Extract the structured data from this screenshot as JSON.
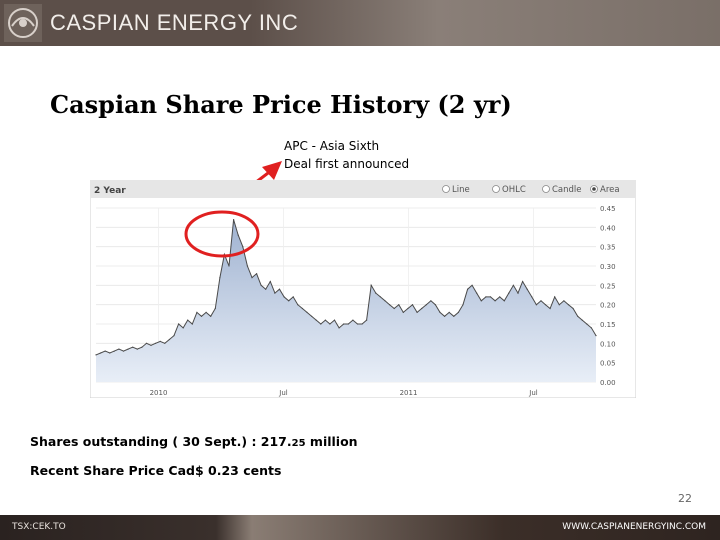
{
  "header": {
    "company": "CASPIAN ENERGY INC"
  },
  "slide": {
    "title": "Caspian Share Price History (2 yr)",
    "callout_line1": "APC  - Asia Sixth",
    "callout_line2": "Deal first announced",
    "shares_outstanding_label": "Shares outstanding  ( 30 Sept.) : 217.",
    "shares_outstanding_decimal": "25",
    "shares_outstanding_unit": " million",
    "recent_price": "Recent Share Price Cad$ 0.23 cents",
    "page_number": "22"
  },
  "footer": {
    "left": "TSX:CEK.TO",
    "right": "WWW.CASPIANENERGYINC.COM"
  },
  "colors": {
    "header_bg": "#5c4f49",
    "area_fill": "#b9c7dc",
    "line": "#4a4a4a",
    "highlight": "#e02020"
  },
  "chart_data": {
    "type": "area",
    "period_label": "2 Year",
    "modes": [
      "Line",
      "OHLC",
      "Candle",
      "Area"
    ],
    "selected_mode": "Area",
    "x_tick_labels": [
      "2010",
      "Jul",
      "2011",
      "Jul"
    ],
    "x_ticks_at": [
      0.25,
      0.75,
      1.25,
      1.75
    ],
    "xlim": [
      0,
      2.0
    ],
    "ylim": [
      0,
      0.45
    ],
    "y_ticks": [
      "0.00",
      "0.05",
      "0.10",
      "0.15",
      "0.20",
      "0.25",
      "0.30",
      "0.35",
      "0.40",
      "0.45"
    ],
    "grid": true,
    "values": [
      0.07,
      0.075,
      0.08,
      0.075,
      0.08,
      0.085,
      0.08,
      0.085,
      0.09,
      0.085,
      0.09,
      0.1,
      0.095,
      0.1,
      0.105,
      0.1,
      0.11,
      0.12,
      0.15,
      0.14,
      0.16,
      0.15,
      0.18,
      0.17,
      0.18,
      0.17,
      0.19,
      0.27,
      0.33,
      0.3,
      0.42,
      0.38,
      0.35,
      0.3,
      0.27,
      0.28,
      0.25,
      0.24,
      0.26,
      0.23,
      0.24,
      0.22,
      0.21,
      0.22,
      0.2,
      0.19,
      0.18,
      0.17,
      0.16,
      0.15,
      0.16,
      0.15,
      0.16,
      0.14,
      0.15,
      0.15,
      0.16,
      0.15,
      0.15,
      0.16,
      0.25,
      0.23,
      0.22,
      0.21,
      0.2,
      0.19,
      0.2,
      0.18,
      0.19,
      0.2,
      0.18,
      0.19,
      0.2,
      0.21,
      0.2,
      0.18,
      0.17,
      0.18,
      0.17,
      0.18,
      0.2,
      0.24,
      0.25,
      0.23,
      0.21,
      0.22,
      0.22,
      0.21,
      0.22,
      0.21,
      0.23,
      0.25,
      0.23,
      0.26,
      0.24,
      0.22,
      0.2,
      0.21,
      0.2,
      0.19,
      0.22,
      0.2,
      0.21,
      0.2,
      0.19,
      0.17,
      0.16,
      0.15,
      0.14,
      0.12
    ]
  }
}
